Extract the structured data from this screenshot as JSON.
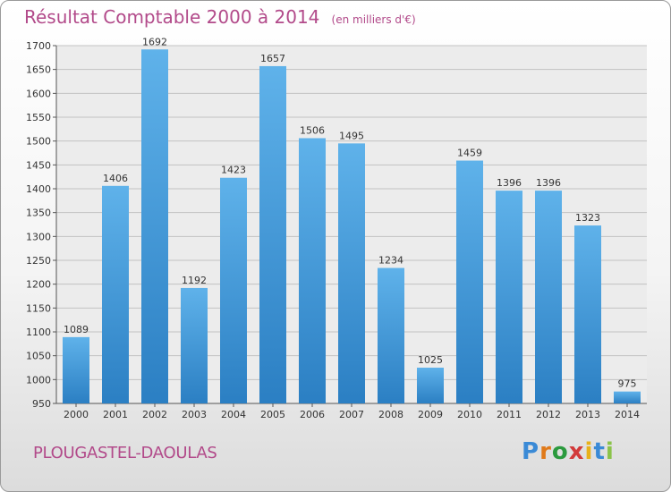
{
  "chart_data": {
    "type": "bar",
    "title": "Résultat Comptable 2000 à 2014",
    "subtitle": "(en milliers d'€)",
    "categories": [
      "2000",
      "2001",
      "2002",
      "2003",
      "2004",
      "2005",
      "2006",
      "2007",
      "2008",
      "2009",
      "2010",
      "2011",
      "2012",
      "2013",
      "2014"
    ],
    "values": [
      1089,
      1406,
      1692,
      1192,
      1423,
      1657,
      1506,
      1495,
      1234,
      1025,
      1459,
      1396,
      1396,
      1323,
      975
    ],
    "ylim": [
      950,
      1700
    ],
    "yticks": [
      950,
      1000,
      1050,
      1100,
      1150,
      1200,
      1250,
      1300,
      1350,
      1400,
      1450,
      1500,
      1550,
      1600,
      1650,
      1700
    ],
    "grid": true,
    "bar_color": "#4fa3e0"
  },
  "footer": {
    "city": "PLOUGASTEL-DAOULAS",
    "logo_letters": [
      "P",
      "r",
      "o",
      "x",
      "i",
      "t",
      "i"
    ],
    "logo_colors": [
      "#3a8ad6",
      "#e07a1a",
      "#2b9a3e",
      "#d23a3a",
      "#e8b11a",
      "#3a8ad6",
      "#8bc34a"
    ]
  }
}
